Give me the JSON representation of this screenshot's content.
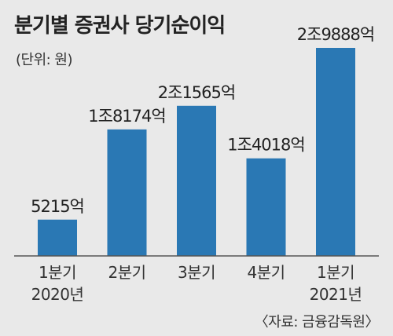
{
  "title": "분기별 증권사 당기순이익",
  "unit_note": "(단위: 원)",
  "source": "〈자료: 금융감독원〉",
  "colors": {
    "bar": "#2a78b4",
    "baseline": "#555555",
    "background": "#e9e9e9"
  },
  "chart_data": {
    "type": "bar",
    "categories": [
      [
        "1분기",
        "2020년"
      ],
      [
        "2분기"
      ],
      [
        "3분기"
      ],
      [
        "4분기"
      ],
      [
        "1분기",
        "2021년"
      ]
    ],
    "values": [
      5215,
      18174,
      21565,
      14018,
      29888
    ],
    "value_labels": [
      "5215억",
      "1조8174억",
      "2조1565억",
      "1조4018억",
      "2조9888억"
    ],
    "title": "분기별 증권사 당기순이익",
    "ylabel": "",
    "ylim": [
      0,
      30000
    ],
    "grid": false,
    "legend": "none"
  }
}
